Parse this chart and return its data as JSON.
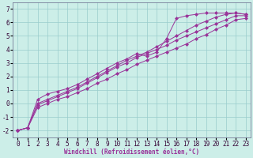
{
  "xlabel": "Windchill (Refroidissement éolien,°C)",
  "bg_color": "#cceee8",
  "grid_color": "#99cccc",
  "line_color": "#993399",
  "xlim": [
    -0.5,
    23.5
  ],
  "ylim": [
    -2.5,
    7.5
  ],
  "x_ticks": [
    0,
    1,
    2,
    3,
    4,
    5,
    6,
    7,
    8,
    9,
    10,
    11,
    12,
    13,
    14,
    15,
    16,
    17,
    18,
    19,
    20,
    21,
    22,
    23
  ],
  "y_ticks": [
    -2,
    -1,
    0,
    1,
    2,
    3,
    4,
    5,
    6,
    7
  ],
  "series": [
    [
      -2.0,
      -1.8,
      0.3,
      0.7,
      0.9,
      1.1,
      1.4,
      1.8,
      2.2,
      2.6,
      3.0,
      3.3,
      3.7,
      3.5,
      3.8,
      4.8,
      6.3,
      6.5,
      6.6,
      6.7,
      6.7,
      6.7,
      6.7,
      6.6
    ],
    [
      -2.0,
      -1.8,
      0.0,
      0.3,
      0.6,
      0.9,
      1.2,
      1.6,
      2.0,
      2.4,
      2.8,
      3.2,
      3.5,
      3.8,
      4.2,
      4.6,
      5.0,
      5.4,
      5.8,
      6.1,
      6.4,
      6.6,
      6.7,
      6.6
    ],
    [
      -2.0,
      -1.8,
      -0.1,
      0.2,
      0.5,
      0.8,
      1.1,
      1.5,
      1.9,
      2.3,
      2.7,
      3.0,
      3.4,
      3.7,
      4.0,
      4.3,
      4.7,
      5.0,
      5.3,
      5.6,
      5.9,
      6.2,
      6.5,
      6.5
    ],
    [
      -2.0,
      -1.8,
      -0.3,
      0.0,
      0.3,
      0.5,
      0.8,
      1.1,
      1.5,
      1.8,
      2.2,
      2.5,
      2.9,
      3.2,
      3.5,
      3.8,
      4.1,
      4.4,
      4.8,
      5.1,
      5.5,
      5.8,
      6.2,
      6.3
    ]
  ],
  "tick_fontsize": 5.5,
  "xlabel_fontsize": 5.5
}
